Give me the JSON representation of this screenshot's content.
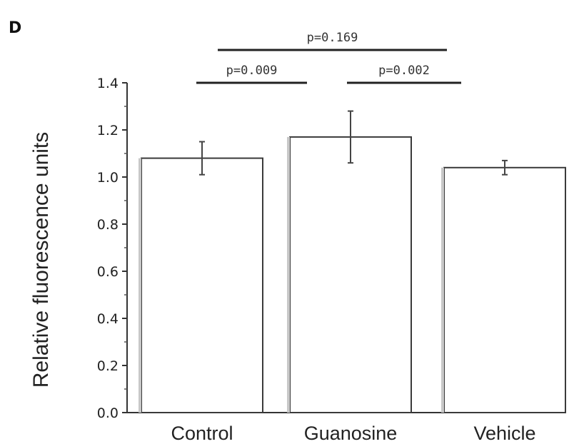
{
  "panel_label": "D",
  "chart_data": {
    "type": "bar",
    "title": "",
    "xlabel": "",
    "ylabel": "Relative fluorescence units",
    "categories": [
      "Control",
      "Guanosine",
      "Vehicle"
    ],
    "values": [
      1.08,
      1.17,
      1.04
    ],
    "errors": [
      0.07,
      0.11,
      0.03
    ],
    "ylim": [
      0.0,
      1.4
    ],
    "yticks": [
      "0.0",
      "0.2",
      "0.4",
      "0.6",
      "0.8",
      "1.0",
      "1.2",
      "1.4"
    ],
    "grid": false,
    "comparisons": [
      {
        "from": 0,
        "to": 1,
        "label": "p=0.009",
        "level": 1
      },
      {
        "from": 1,
        "to": 2,
        "label": "p=0.002",
        "level": 1
      },
      {
        "from": 0,
        "to": 2,
        "label": "p=0.169",
        "level": 2
      }
    ]
  }
}
